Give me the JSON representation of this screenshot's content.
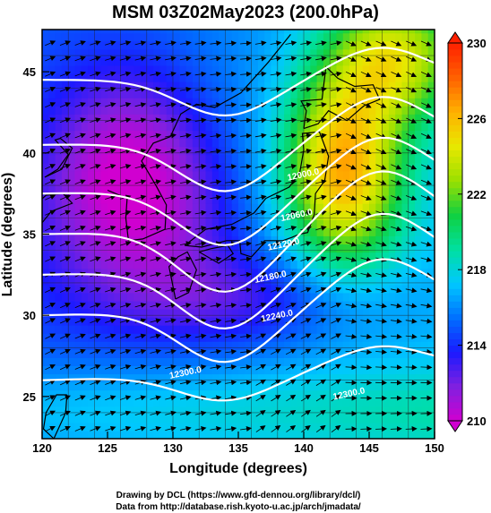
{
  "chart_data": {
    "type": "heatmap",
    "title": "MSM 03Z02May2023 (200.0hPa)",
    "xlabel": "Longitude (degrees)",
    "ylabel": "Latitude  (degrees)",
    "xlim": [
      120,
      150
    ],
    "ylim": [
      22.4,
      47.6
    ],
    "x_ticks": [
      120,
      125,
      130,
      135,
      140,
      145,
      150
    ],
    "y_ticks": [
      25,
      30,
      35,
      40,
      45
    ],
    "colorbar": {
      "min": 210,
      "max": 230,
      "ticks": [
        210,
        214,
        218,
        222,
        226,
        230
      ],
      "colors": [
        "#d000d0",
        "#8020e0",
        "#1a1aff",
        "#0070ff",
        "#00c8ff",
        "#00e0a0",
        "#10d040",
        "#9be000",
        "#e8e800",
        "#ffb000",
        "#ff6000",
        "#ff2000"
      ]
    },
    "contour_labels": [
      {
        "text": "12000.0",
        "lon": 140.0,
        "lat": 38.5
      },
      {
        "text": "12060.0",
        "lon": 139.5,
        "lat": 36.0
      },
      {
        "text": "12120.0",
        "lon": 138.5,
        "lat": 34.2
      },
      {
        "text": "12180.0",
        "lon": 137.5,
        "lat": 32.2
      },
      {
        "text": "12240.0",
        "lon": 138.0,
        "lat": 29.8
      },
      {
        "text": "12300.0",
        "lon": 131.0,
        "lat": 26.3
      },
      {
        "text": "12300.0",
        "lon": 143.5,
        "lat": 25.0
      }
    ]
  },
  "footer": {
    "line1": "Drawing by DCL (https://www.gfd-dennou.org/library/dcl/)",
    "line2": "Data from http://database.rish.kyoto-u.ac.jp/arch/jmadata/"
  }
}
